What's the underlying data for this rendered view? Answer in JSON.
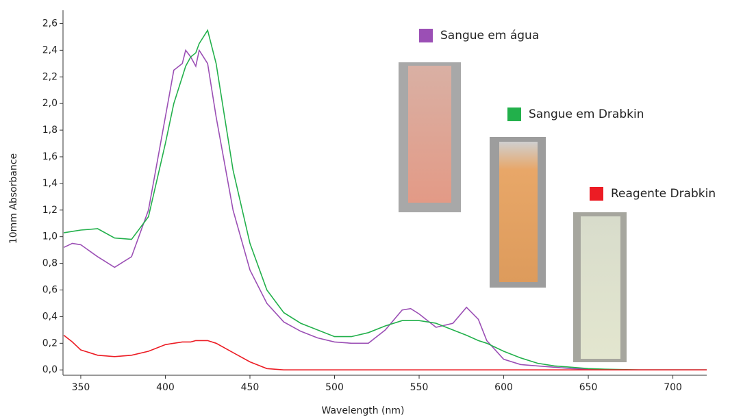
{
  "chart_data": {
    "type": "line",
    "x_label": "Wavelength (nm)",
    "y_label": "10mm Absorbance",
    "xlim": [
      339.5,
      720
    ],
    "xticks": [
      350,
      400,
      450,
      500,
      550,
      600,
      650,
      700
    ],
    "ylim": [
      -0.04,
      2.7
    ],
    "yticks": [
      {
        "value": 0,
        "label": "0,0"
      },
      {
        "value": 0.2,
        "label": "0,2"
      },
      {
        "value": 0.4,
        "label": "0,4"
      },
      {
        "value": 0.6,
        "label": "0,6"
      },
      {
        "value": 0.8,
        "label": "0,8"
      },
      {
        "value": 1.0,
        "label": "1,0"
      },
      {
        "value": 1.2,
        "label": "1,2"
      },
      {
        "value": 1.4,
        "label": "1,4"
      },
      {
        "value": 1.6,
        "label": "1,6"
      },
      {
        "value": 1.8,
        "label": "1,8"
      },
      {
        "value": 2.0,
        "label": "2,0"
      },
      {
        "value": 2.2,
        "label": "2,2"
      },
      {
        "value": 2.4,
        "label": "2,4"
      },
      {
        "value": 2.6,
        "label": "2,6"
      }
    ],
    "x": [
      340,
      345,
      350,
      360,
      370,
      380,
      390,
      400,
      405,
      410,
      412,
      415,
      418,
      420,
      425,
      430,
      440,
      450,
      460,
      470,
      480,
      490,
      500,
      510,
      520,
      530,
      540,
      545,
      550,
      560,
      570,
      578,
      585,
      590,
      600,
      610,
      620,
      630,
      640,
      650,
      660,
      680,
      700,
      720
    ],
    "series": [
      {
        "name": "Sangue em água",
        "color": "#9b4fb5",
        "values": [
          0.92,
          0.95,
          0.94,
          0.85,
          0.77,
          0.85,
          1.2,
          1.9,
          2.25,
          2.3,
          2.4,
          2.35,
          2.28,
          2.4,
          2.3,
          1.9,
          1.2,
          0.75,
          0.5,
          0.36,
          0.29,
          0.24,
          0.21,
          0.2,
          0.2,
          0.3,
          0.45,
          0.46,
          0.42,
          0.32,
          0.35,
          0.47,
          0.38,
          0.22,
          0.08,
          0.04,
          0.03,
          0.02,
          0.01,
          0.005,
          0,
          0,
          0,
          0
        ]
      },
      {
        "name": "Sangue em Drabkin",
        "color": "#22b04b",
        "values": [
          1.03,
          1.04,
          1.05,
          1.06,
          0.99,
          0.98,
          1.15,
          1.7,
          2.0,
          2.2,
          2.28,
          2.35,
          2.38,
          2.45,
          2.55,
          2.3,
          1.5,
          0.95,
          0.6,
          0.43,
          0.35,
          0.3,
          0.25,
          0.25,
          0.28,
          0.33,
          0.37,
          0.37,
          0.37,
          0.35,
          0.3,
          0.26,
          0.22,
          0.2,
          0.14,
          0.09,
          0.05,
          0.03,
          0.02,
          0.01,
          0.005,
          0,
          0,
          0
        ]
      },
      {
        "name": "Reagente Drabkin",
        "color": "#ec1c24",
        "values": [
          0.26,
          0.21,
          0.15,
          0.11,
          0.1,
          0.11,
          0.14,
          0.19,
          0.2,
          0.21,
          0.21,
          0.21,
          0.22,
          0.22,
          0.22,
          0.2,
          0.13,
          0.06,
          0.01,
          0,
          0,
          0,
          0,
          0,
          0,
          0,
          0,
          0,
          0,
          0,
          0,
          0,
          0,
          0,
          0,
          0,
          0,
          0,
          0,
          0,
          0,
          0,
          0,
          0
        ]
      }
    ]
  }
}
